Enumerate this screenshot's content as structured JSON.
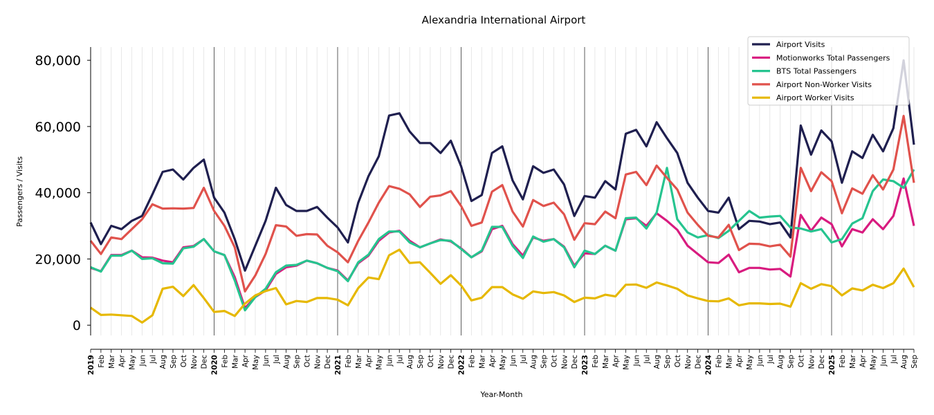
{
  "chart_data": {
    "type": "line",
    "title": "Alexandria International Airport",
    "xlabel": "Year-Month",
    "ylabel": "Passengers / Visits",
    "ylim": [
      -3100,
      84000
    ],
    "yticks": [
      0,
      20000,
      40000,
      60000,
      80000
    ],
    "ytick_labels": [
      "0",
      "20,000",
      "40,000",
      "60,000",
      "80,000"
    ],
    "grid": "vertical monthly, dark lines at each January",
    "legend_placement": "top-right",
    "start": {
      "year": 2019,
      "month": 1
    },
    "month_labels": [
      "Jan",
      "Feb",
      "Mar",
      "Apr",
      "May",
      "Jun",
      "Jul",
      "Aug",
      "Sep",
      "Oct",
      "Nov",
      "Dec"
    ],
    "series": [
      {
        "name": "Airport Visits",
        "color": "#1f1f4f",
        "values": [
          31000,
          24500,
          30000,
          29000,
          31500,
          33000,
          39500,
          46300,
          47000,
          44000,
          47500,
          50000,
          38500,
          34000,
          26000,
          16500,
          24000,
          31500,
          41500,
          36300,
          34500,
          34500,
          35700,
          32500,
          29500,
          25000,
          37000,
          45000,
          51000,
          63300,
          64000,
          58500,
          55000,
          55000,
          52000,
          55700,
          48000,
          37500,
          39300,
          52000,
          54000,
          43700,
          38000,
          48000,
          46000,
          47000,
          42500,
          33000,
          39000,
          38500,
          43500,
          41000,
          57800,
          59000,
          54000,
          61300,
          56500,
          52000,
          43000,
          38500,
          34500,
          34000,
          38500,
          29000,
          31500,
          31300,
          30500,
          31000,
          26500,
          60300,
          51500,
          58800,
          55500,
          43000,
          52500,
          50500,
          57500,
          52500,
          59500,
          80000,
          54500
        ]
      },
      {
        "name": "Motionworks Total Passengers",
        "color": "#d81b7f",
        "values": [
          17300,
          16300,
          21200,
          21200,
          22500,
          20500,
          20400,
          19500,
          19000,
          23500,
          23900,
          26000,
          22300,
          21200,
          14500,
          5200,
          8500,
          10500,
          15500,
          17500,
          18000,
          19500,
          18700,
          17300,
          16500,
          13500,
          18700,
          21000,
          25500,
          28000,
          28500,
          25500,
          23500,
          24700,
          25900,
          25300,
          23200,
          20500,
          22300,
          29000,
          30000,
          24500,
          21000,
          26500,
          25500,
          26000,
          23700,
          18000,
          21700,
          21500,
          24000,
          22500,
          32000,
          32300,
          30000,
          33800,
          31500,
          28800,
          24000,
          21500,
          19000,
          18800,
          21300,
          16000,
          17300,
          17300,
          16800,
          17000,
          14700,
          33300,
          28500,
          32500,
          30500,
          23800,
          29000,
          28000,
          32000,
          29000,
          33000,
          44300,
          30000
        ]
      },
      {
        "name": "BTS Total Passengers",
        "color": "#26c48f",
        "values": [
          17500,
          16200,
          21000,
          21000,
          22500,
          20000,
          20200,
          18700,
          18600,
          23200,
          23700,
          26000,
          22300,
          21200,
          13500,
          4500,
          8500,
          11000,
          16000,
          18000,
          18200,
          19500,
          18700,
          17300,
          16300,
          13300,
          19000,
          21300,
          26000,
          28300,
          28300,
          25000,
          23500,
          24700,
          25700,
          25500,
          23000,
          20500,
          22500,
          29700,
          29700,
          24000,
          20300,
          26800,
          25200,
          26000,
          23500,
          17500,
          22500,
          21500,
          24000,
          22500,
          32300,
          32500,
          29200,
          34000,
          47500,
          32000,
          28000,
          26500,
          27200,
          26300,
          28500,
          31500,
          34500,
          32500,
          32800,
          33000,
          29500,
          29200,
          28300,
          29000,
          25000,
          26000,
          30700,
          32300,
          40500,
          44000,
          43500,
          41500,
          47000
        ]
      },
      {
        "name": "Airport Non-Worker Visits",
        "color": "#e0524c",
        "values": [
          25500,
          21500,
          26500,
          26000,
          29000,
          32000,
          36500,
          35200,
          35300,
          35200,
          35400,
          41500,
          34500,
          30000,
          23500,
          10200,
          15000,
          21500,
          30200,
          29800,
          27000,
          27500,
          27400,
          24000,
          22000,
          19000,
          25500,
          31000,
          37000,
          42000,
          41200,
          39500,
          35700,
          38800,
          39200,
          40500,
          36000,
          30000,
          31000,
          40300,
          42300,
          34300,
          29800,
          37800,
          36000,
          37000,
          33500,
          25800,
          30800,
          30500,
          34300,
          32300,
          45500,
          46300,
          42300,
          48200,
          44500,
          41000,
          34000,
          30300,
          27000,
          26500,
          30300,
          22700,
          24600,
          24500,
          23800,
          24300,
          20700,
          47500,
          40500,
          46200,
          43500,
          33800,
          41300,
          39700,
          45300,
          41000,
          47000,
          63200,
          43000
        ]
      },
      {
        "name": "Airport Worker Visits",
        "color": "#e6b800",
        "values": [
          5300,
          3100,
          3200,
          3000,
          2800,
          800,
          3000,
          11000,
          11600,
          8800,
          12100,
          8200,
          4000,
          4300,
          2800,
          6500,
          9000,
          10300,
          11200,
          6300,
          7300,
          7000,
          8200,
          8200,
          7700,
          6000,
          11200,
          14400,
          13900,
          21100,
          22800,
          18800,
          19000,
          15800,
          12500,
          15100,
          12000,
          7500,
          8300,
          11500,
          11500,
          9300,
          8000,
          10200,
          9700,
          10000,
          9000,
          7000,
          8300,
          8100,
          9200,
          8700,
          12200,
          12300,
          11300,
          12900,
          12000,
          11000,
          9000,
          8100,
          7300,
          7200,
          8100,
          6000,
          6600,
          6600,
          6400,
          6500,
          5600,
          12700,
          11000,
          12400,
          11800,
          9000,
          11100,
          10500,
          12200,
          11200,
          12700,
          17100,
          11500
        ]
      }
    ]
  }
}
